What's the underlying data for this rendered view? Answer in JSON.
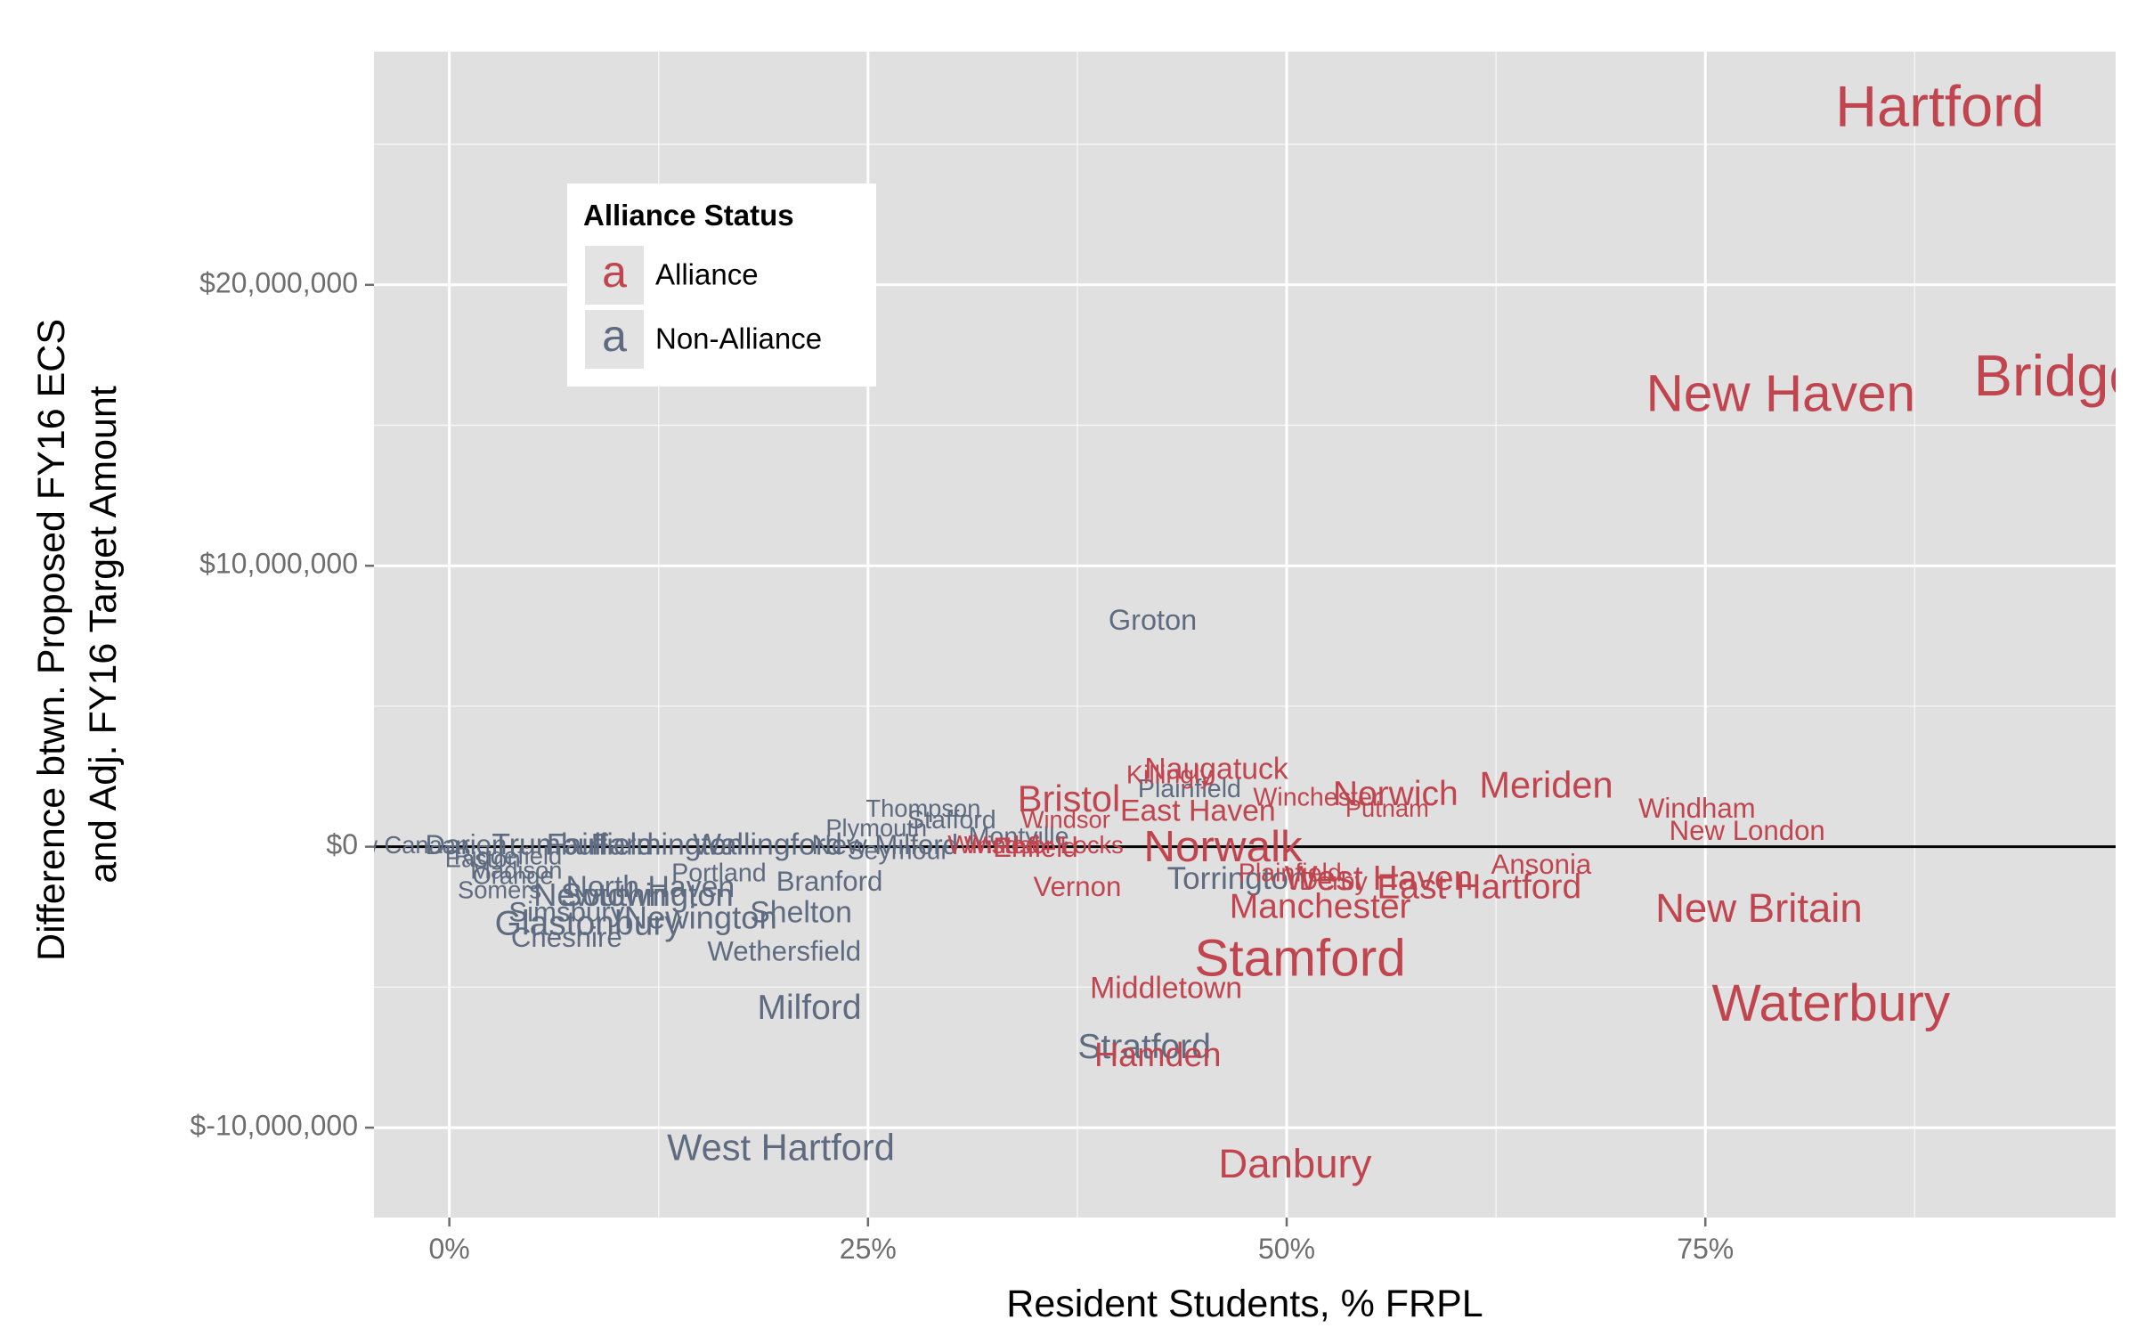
{
  "chart_data": {
    "type": "scatter",
    "title": "",
    "xlabel": "Resident Students, % FRPL",
    "ylabel_lines": [
      "Difference btwn. Proposed FY16 ECS",
      "and Adj. FY16 Target Amount"
    ],
    "xlim": [
      -0.045,
      0.995
    ],
    "ylim": [
      -13200000,
      28300000
    ],
    "x_ticks": [
      {
        "value": 0,
        "label": "0%"
      },
      {
        "value": 0.25,
        "label": "25%"
      },
      {
        "value": 0.5,
        "label": "50%"
      },
      {
        "value": 0.75,
        "label": "75%"
      }
    ],
    "y_ticks": [
      {
        "value": 20000000,
        "label": "$20,000,000"
      },
      {
        "value": 10000000,
        "label": "$10,000,000"
      },
      {
        "value": 0,
        "label": "$0"
      },
      {
        "value": -10000000,
        "label": "$-10,000,000"
      }
    ],
    "reference_line_y": 0,
    "grid": true,
    "legend": {
      "title": "Alliance Status",
      "placement": "top-left",
      "key_glyph": "a",
      "entries": [
        {
          "label": "Alliance",
          "color": "#c0454f"
        },
        {
          "label": "Non-Alliance",
          "color": "#5e6b80"
        }
      ]
    },
    "colors": {
      "alliance": "#c0454f",
      "non_alliance": "#5e6b80",
      "panel": "#e0e0e0",
      "grid": "#ffffff",
      "zero_line": "#000000"
    },
    "series": [
      {
        "name": "Alliance",
        "points": [
          {
            "label": "Hartford",
            "x": 0.89,
            "y": 26200000,
            "size": 5
          },
          {
            "label": "Bridgeport",
            "x": 0.99,
            "y": 16600000,
            "size": 5
          },
          {
            "label": "New Haven",
            "x": 0.795,
            "y": 16000000,
            "size": 4.5
          },
          {
            "label": "Waterbury",
            "x": 0.825,
            "y": -5700000,
            "size": 4.5
          },
          {
            "label": "Stamford",
            "x": 0.508,
            "y": -4100000,
            "size": 4.5
          },
          {
            "label": "Norwalk",
            "x": 0.462,
            "y": -100000,
            "size": 3.8
          },
          {
            "label": "New Britain",
            "x": 0.782,
            "y": -2300000,
            "size": 3.5
          },
          {
            "label": "Danbury",
            "x": 0.505,
            "y": -11400000,
            "size": 3.5
          },
          {
            "label": "Meriden",
            "x": 0.655,
            "y": 2100000,
            "size": 3.2
          },
          {
            "label": "Bristol",
            "x": 0.37,
            "y": 1600000,
            "size": 3.2
          },
          {
            "label": "Norwich",
            "x": 0.565,
            "y": 1800000,
            "size": 3.0
          },
          {
            "label": "West Haven",
            "x": 0.555,
            "y": -1200000,
            "size": 3.0
          },
          {
            "label": "East Hartford",
            "x": 0.615,
            "y": -1500000,
            "size": 3.0
          },
          {
            "label": "Manchester",
            "x": 0.52,
            "y": -2200000,
            "size": 3.0
          },
          {
            "label": "Naugatuck",
            "x": 0.458,
            "y": 2700000,
            "size": 2.6
          },
          {
            "label": "East Haven",
            "x": 0.447,
            "y": 1200000,
            "size": 2.6
          },
          {
            "label": "Middletown",
            "x": 0.428,
            "y": -5100000,
            "size": 2.6
          },
          {
            "label": "Hamden",
            "x": 0.423,
            "y": -7500000,
            "size": 2.9
          },
          {
            "label": "Killingly",
            "x": 0.43,
            "y": 2500000,
            "size": 2.2
          },
          {
            "label": "Windham",
            "x": 0.745,
            "y": 1300000,
            "size": 2.4
          },
          {
            "label": "New London",
            "x": 0.775,
            "y": 500000,
            "size": 2.4
          },
          {
            "label": "Ansonia",
            "x": 0.652,
            "y": -700000,
            "size": 2.4
          },
          {
            "label": "Vernon",
            "x": 0.375,
            "y": -1500000,
            "size": 2.4
          },
          {
            "label": "Winchester",
            "x": 0.518,
            "y": 1700000,
            "size": 2.2
          },
          {
            "label": "Putnam",
            "x": 0.56,
            "y": 1300000,
            "size": 2.1
          },
          {
            "label": "Windsor",
            "x": 0.368,
            "y": 900000,
            "size": 2.1
          },
          {
            "label": "Plainfield",
            "x": 0.502,
            "y": -1000000,
            "size": 2.2
          },
          {
            "label": "Derby",
            "x": 0.528,
            "y": -1300000,
            "size": 2.2
          },
          {
            "label": "Windsor Locks",
            "x": 0.355,
            "y": 0,
            "size": 2.1
          },
          {
            "label": "Winsted",
            "x": 0.325,
            "y": 0,
            "size": 2.2
          },
          {
            "label": "Enfield",
            "x": 0.35,
            "y": -100000,
            "size": 2.4
          }
        ]
      },
      {
        "name": "Non-Alliance",
        "points": [
          {
            "label": "West Hartford",
            "x": 0.198,
            "y": -10800000,
            "size": 3.2
          },
          {
            "label": "Groton",
            "x": 0.42,
            "y": 8000000,
            "size": 2.5
          },
          {
            "label": "Stratford",
            "x": 0.415,
            "y": -7200000,
            "size": 3.0
          },
          {
            "label": "Milford",
            "x": 0.215,
            "y": -5800000,
            "size": 3.0
          },
          {
            "label": "Torrington",
            "x": 0.47,
            "y": -1200000,
            "size": 2.7
          },
          {
            "label": "Plainfield",
            "x": 0.442,
            "y": 2000000,
            "size": 2.2
          },
          {
            "label": "Wethersfield",
            "x": 0.2,
            "y": -3800000,
            "size": 2.4
          },
          {
            "label": "Shelton",
            "x": 0.21,
            "y": -2400000,
            "size": 2.6
          },
          {
            "label": "Branford",
            "x": 0.227,
            "y": -1300000,
            "size": 2.4
          },
          {
            "label": "Newington",
            "x": 0.15,
            "y": -2600000,
            "size": 2.8
          },
          {
            "label": "Glastonbury",
            "x": 0.083,
            "y": -2800000,
            "size": 3.0
          },
          {
            "label": "Cheshire",
            "x": 0.07,
            "y": -3300000,
            "size": 2.4
          },
          {
            "label": "Simsbury",
            "x": 0.07,
            "y": -2400000,
            "size": 2.4
          },
          {
            "label": "Southington",
            "x": 0.118,
            "y": -1800000,
            "size": 2.8
          },
          {
            "label": "Newtown",
            "x": 0.09,
            "y": -1800000,
            "size": 2.8
          },
          {
            "label": "North Haven",
            "x": 0.12,
            "y": -1500000,
            "size": 2.6
          },
          {
            "label": "Portland",
            "x": 0.161,
            "y": -1000000,
            "size": 2.2
          },
          {
            "label": "Orange",
            "x": 0.038,
            "y": -1100000,
            "size": 2.1
          },
          {
            "label": "Somers",
            "x": 0.03,
            "y": -1600000,
            "size": 2.1
          },
          {
            "label": "Thompson",
            "x": 0.283,
            "y": 1300000,
            "size": 2.1
          },
          {
            "label": "Stafford",
            "x": 0.3,
            "y": 900000,
            "size": 2.2
          },
          {
            "label": "Plymouth",
            "x": 0.255,
            "y": 600000,
            "size": 2.1
          },
          {
            "label": "Montville",
            "x": 0.34,
            "y": 300000,
            "size": 2.2
          },
          {
            "label": "Seymour",
            "x": 0.268,
            "y": -200000,
            "size": 2.2
          },
          {
            "label": "New Milford",
            "x": 0.26,
            "y": 0,
            "size": 2.4
          },
          {
            "label": "New Canaan",
            "x": -0.03,
            "y": 0,
            "size": 2.1
          },
          {
            "label": "Darien",
            "x": 0.01,
            "y": 0,
            "size": 2.4
          },
          {
            "label": "Easton",
            "x": 0.02,
            "y": -500000,
            "size": 2.1
          },
          {
            "label": "Trumbull",
            "x": 0.06,
            "y": 0,
            "size": 2.6
          },
          {
            "label": "Fairfield",
            "x": 0.09,
            "y": 0,
            "size": 2.6
          },
          {
            "label": "Farmington",
            "x": 0.13,
            "y": 0,
            "size": 2.6
          },
          {
            "label": "Wallingford",
            "x": 0.19,
            "y": 0,
            "size": 2.6
          },
          {
            "label": "Ridgefield",
            "x": 0.035,
            "y": -400000,
            "size": 2.1
          },
          {
            "label": "Madison",
            "x": 0.04,
            "y": -900000,
            "size": 2.1
          }
        ]
      }
    ]
  }
}
